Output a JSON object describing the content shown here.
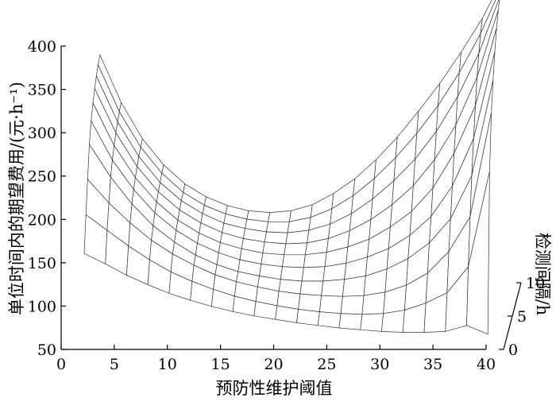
{
  "chart_data": {
    "type": "surface3d",
    "title": "",
    "xlabel": "预防性维护阈值",
    "ylabel": "检测间隔/h",
    "zlabel": "单位时间内的期望费用/(元·h⁻¹)",
    "xlim": [
      0,
      40
    ],
    "ylim": [
      0,
      10
    ],
    "zlim": [
      50,
      400
    ],
    "x_ticks": [
      "0",
      "5",
      "10",
      "15",
      "20",
      "25",
      "30",
      "35",
      "40"
    ],
    "y_ticks": [
      "0",
      "5",
      "10"
    ],
    "z_ticks": [
      "50",
      "100",
      "150",
      "200",
      "250",
      "300",
      "350",
      "400"
    ],
    "x_grid": [
      2,
      4,
      6,
      8,
      10,
      12,
      14,
      16,
      18,
      20,
      22,
      24,
      26,
      28,
      30,
      32,
      34,
      36,
      38,
      40
    ],
    "y_grid": [
      1,
      2,
      3,
      4,
      5,
      6,
      7,
      8,
      9,
      10
    ],
    "z_values": [
      [
        153,
        141,
        128,
        117,
        107,
        99,
        92,
        86,
        81,
        77,
        73,
        70,
        67,
        65,
        63,
        62,
        62,
        63,
        70,
        60
      ],
      [
        190,
        172,
        154,
        138,
        124,
        113,
        104,
        96,
        90,
        85,
        81,
        78,
        76,
        75,
        76,
        80,
        88,
        100,
        130,
        240
      ],
      [
        223,
        196,
        173,
        153,
        137,
        124,
        113,
        105,
        99,
        94,
        91,
        89,
        88,
        89,
        93,
        101,
        115,
        140,
        180,
        300
      ],
      [
        256,
        218,
        187,
        162,
        143,
        128,
        117,
        109,
        104,
        100,
        98,
        98,
        100,
        104,
        112,
        124,
        142,
        170,
        220,
        330
      ],
      [
        275,
        230,
        196,
        169,
        149,
        134,
        123,
        115,
        110,
        107,
        106,
        107,
        111,
        118,
        128,
        143,
        165,
        200,
        255,
        355
      ],
      [
        288,
        239,
        202,
        174,
        153,
        138,
        127,
        120,
        115,
        113,
        113,
        116,
        122,
        131,
        145,
        163,
        190,
        230,
        285,
        375
      ],
      [
        297,
        246,
        207,
        178,
        157,
        142,
        131,
        124,
        120,
        118,
        119,
        124,
        133,
        146,
        163,
        185,
        215,
        255,
        310,
        388
      ],
      [
        304,
        251,
        211,
        181,
        160,
        145,
        134,
        128,
        124,
        123,
        126,
        133,
        145,
        162,
        183,
        208,
        240,
        280,
        330,
        396
      ],
      [
        309,
        255,
        214,
        184,
        162,
        147,
        137,
        131,
        128,
        128,
        133,
        143,
        158,
        178,
        202,
        230,
        262,
        300,
        345,
        400
      ],
      [
        313,
        258,
        216,
        186,
        164,
        149,
        139,
        133,
        131,
        133,
        140,
        153,
        170,
        192,
        218,
        248,
        280,
        316,
        355,
        403
      ]
    ]
  }
}
